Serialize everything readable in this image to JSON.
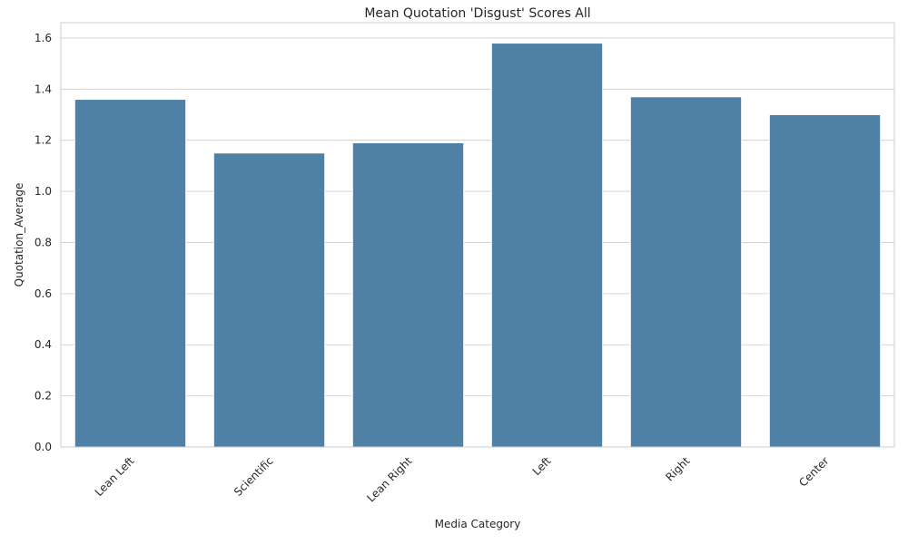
{
  "chart_data": {
    "type": "bar",
    "title": "Mean Quotation 'Disgust' Scores All",
    "xlabel": "Media Category",
    "ylabel": "Quotation_Average",
    "categories": [
      "Lean Left",
      "Scientific",
      "Lean Right",
      "Left",
      "Right",
      "Center"
    ],
    "values": [
      1.36,
      1.15,
      1.19,
      1.58,
      1.37,
      1.3
    ],
    "ylim": [
      0,
      1.66
    ],
    "yticks": [
      "0.0",
      "0.2",
      "0.4",
      "0.6",
      "0.8",
      "1.0",
      "1.2",
      "1.4",
      "1.6"
    ],
    "ytick_values": [
      0.0,
      0.2,
      0.4,
      0.6,
      0.8,
      1.0,
      1.2,
      1.4,
      1.6
    ],
    "grid": "horizontal",
    "bar_color": "#4f81a6",
    "bar_edge_color": "#ffffff",
    "grid_color": "#cccccc",
    "background": "#ffffff"
  }
}
